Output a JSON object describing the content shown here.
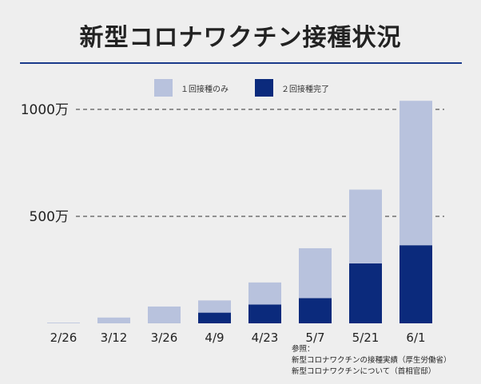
{
  "title": "新型コロナワクチン接種状況",
  "colors": {
    "first_dose_only": "#b8c2dd",
    "second_dose": "#0b2a7c",
    "rule": "#1a3a8a"
  },
  "chart_data": {
    "type": "bar",
    "stacked": true,
    "categories": [
      "2/26",
      "3/12",
      "3/26",
      "4/9",
      "4/23",
      "5/7",
      "5/21",
      "6/1"
    ],
    "series": [
      {
        "name": "２回接種完了",
        "values": [
          0,
          0,
          0.5,
          50,
          88,
          118,
          280,
          365
        ]
      },
      {
        "name": "１回接種のみ",
        "values": [
          3,
          27,
          78,
          57,
          103,
          233,
          345,
          675
        ]
      }
    ],
    "ylim": [
      0,
      1100
    ],
    "yticks": [
      500,
      1000
    ],
    "ytick_labels": [
      "500万",
      "1000万"
    ],
    "grid": "dashed",
    "legend_position": "top"
  },
  "notes": {
    "heading": "参照：",
    "line1": "新型コロナワクチンの接種実績（厚生労働省）",
    "line2": "新型コロナワクチンについて（首相官邸）"
  }
}
